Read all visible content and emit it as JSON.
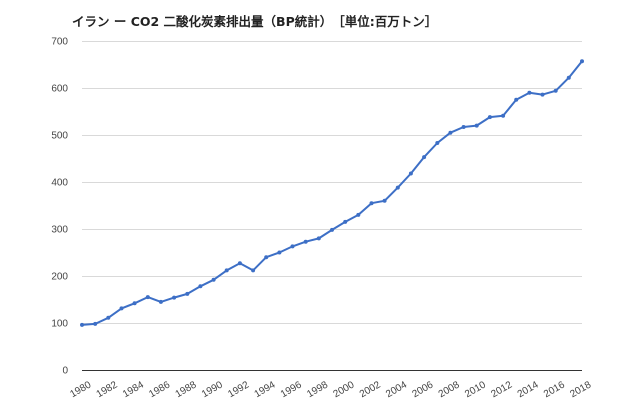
{
  "chart_data": {
    "type": "line",
    "title": "イラン ー CO2 二酸化炭素排出量（BP統計）　［単位:百万トン］",
    "xlabel": "",
    "ylabel": "",
    "xlim": [
      1980,
      2018
    ],
    "ylim": [
      0,
      700
    ],
    "yticks": [
      0,
      100,
      200,
      300,
      400,
      500,
      600,
      700
    ],
    "xticks": [
      1980,
      1982,
      1984,
      1986,
      1988,
      1990,
      1992,
      1994,
      1996,
      1998,
      2000,
      2002,
      2004,
      2006,
      2008,
      2010,
      2012,
      2014,
      2016,
      2018
    ],
    "grid": true,
    "legend": "none",
    "series": [
      {
        "color": "#3d6fc6",
        "x": [
          1980,
          1981,
          1982,
          1983,
          1984,
          1985,
          1986,
          1987,
          1988,
          1989,
          1990,
          1991,
          1992,
          1993,
          1994,
          1995,
          1996,
          1997,
          1998,
          1999,
          2000,
          2001,
          2002,
          2003,
          2004,
          2005,
          2006,
          2007,
          2008,
          2009,
          2010,
          2011,
          2012,
          2013,
          2014,
          2015,
          2016,
          2017,
          2018
        ],
        "y": [
          96,
          98,
          111,
          131,
          142,
          155,
          145,
          154,
          162,
          178,
          192,
          212,
          227,
          212,
          240,
          250,
          263,
          273,
          280,
          298,
          315,
          330,
          355,
          360,
          388,
          418,
          453,
          483,
          505,
          517,
          520,
          538,
          541,
          575,
          590,
          586,
          594,
          622,
          657
        ]
      }
    ]
  }
}
